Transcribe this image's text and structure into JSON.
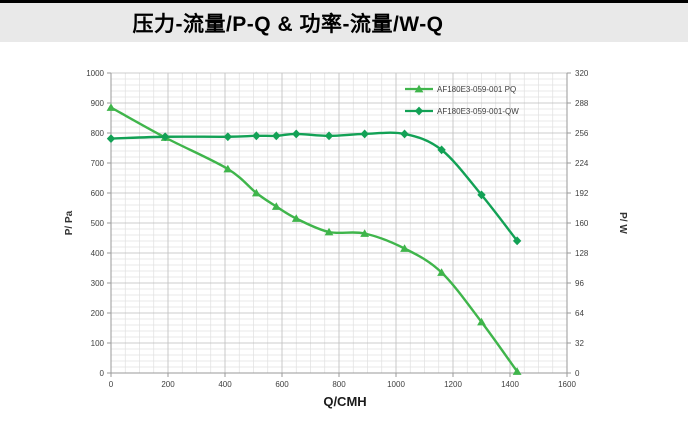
{
  "page": {
    "title": "压力-流量/P-Q &  功率-流量/W-Q"
  },
  "chart_data": {
    "type": "line",
    "title": "",
    "xlabel": "Q/CMH",
    "ylabel_left": "P/ Pa",
    "ylabel_right": "P/ W",
    "xlim": [
      0,
      1600
    ],
    "ylim_left": [
      0,
      1000
    ],
    "ylim_right": [
      0,
      320
    ],
    "x_ticks": [
      0,
      200,
      400,
      600,
      800,
      1000,
      1200,
      1400,
      1600
    ],
    "y_ticks_left": [
      0,
      100,
      200,
      300,
      400,
      500,
      600,
      700,
      800,
      900,
      1000
    ],
    "y_ticks_right": [
      0,
      32,
      64,
      96,
      128,
      160,
      192,
      224,
      256,
      288,
      320
    ],
    "x_minor_step": 50,
    "y_minor_step": 20,
    "grid": true,
    "legend_position": "top-right-inside",
    "x": [
      0,
      190,
      410,
      510,
      580,
      650,
      765,
      890,
      1030,
      1160,
      1300,
      1425
    ],
    "series": [
      {
        "name": "AF180E3-059-001 PQ",
        "axis": "left",
        "marker": "triangle",
        "color": "#3fb54b",
        "values": [
          885,
          785,
          680,
          600,
          555,
          515,
          470,
          465,
          415,
          335,
          170,
          5
        ]
      },
      {
        "name": "AF180E3-059-001-QW",
        "axis": "right",
        "marker": "diamond",
        "color": "#12a155",
        "values": [
          250,
          252,
          252,
          253,
          253,
          255,
          253,
          255,
          255,
          238,
          190,
          141
        ]
      }
    ],
    "colors": {
      "grid_minor": "#e0e0e0",
      "grid_major": "#bdbdbd",
      "axis": "#9a9a9a",
      "tick_label": "#404040",
      "axis_title": "#333333"
    }
  }
}
